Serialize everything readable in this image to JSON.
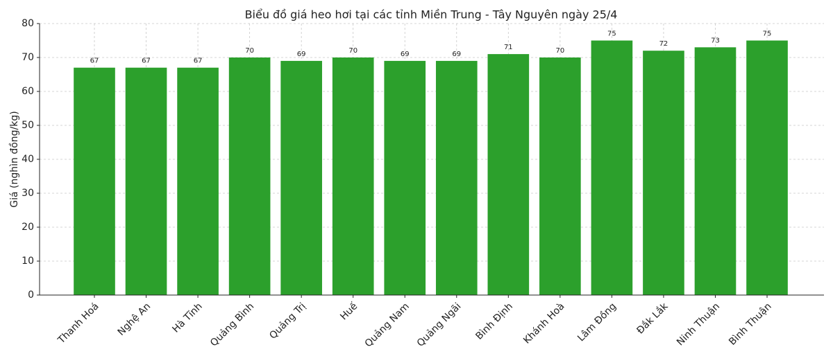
{
  "chart_data": {
    "type": "bar",
    "title": "Biểu đồ giá heo hơi tại các tỉnh Miền Trung - Tây Nguyên ngày 25/4",
    "y_label": "Giá (nghìn đồng/kg)",
    "categories": [
      "Thanh Hoá",
      "Nghệ An",
      "Hà Tĩnh",
      "Quảng Bình",
      "Quảng Trị",
      "Huế",
      "Quảng Nam",
      "Quảng Ngãi",
      "Bình Định",
      "Khánh Hoà",
      "Lâm Đồng",
      "Đắk Lắk",
      "Ninh Thuận",
      "Bình Thuận"
    ],
    "values": [
      67,
      67,
      67,
      70,
      69,
      70,
      69,
      69,
      71,
      70,
      75,
      72,
      73,
      75
    ],
    "color": "#2ca02c",
    "ylim": [
      0,
      80
    ],
    "yticks": [
      0,
      10,
      20,
      30,
      40,
      50,
      60,
      70,
      80
    ],
    "grid": true,
    "data_labels": true
  }
}
